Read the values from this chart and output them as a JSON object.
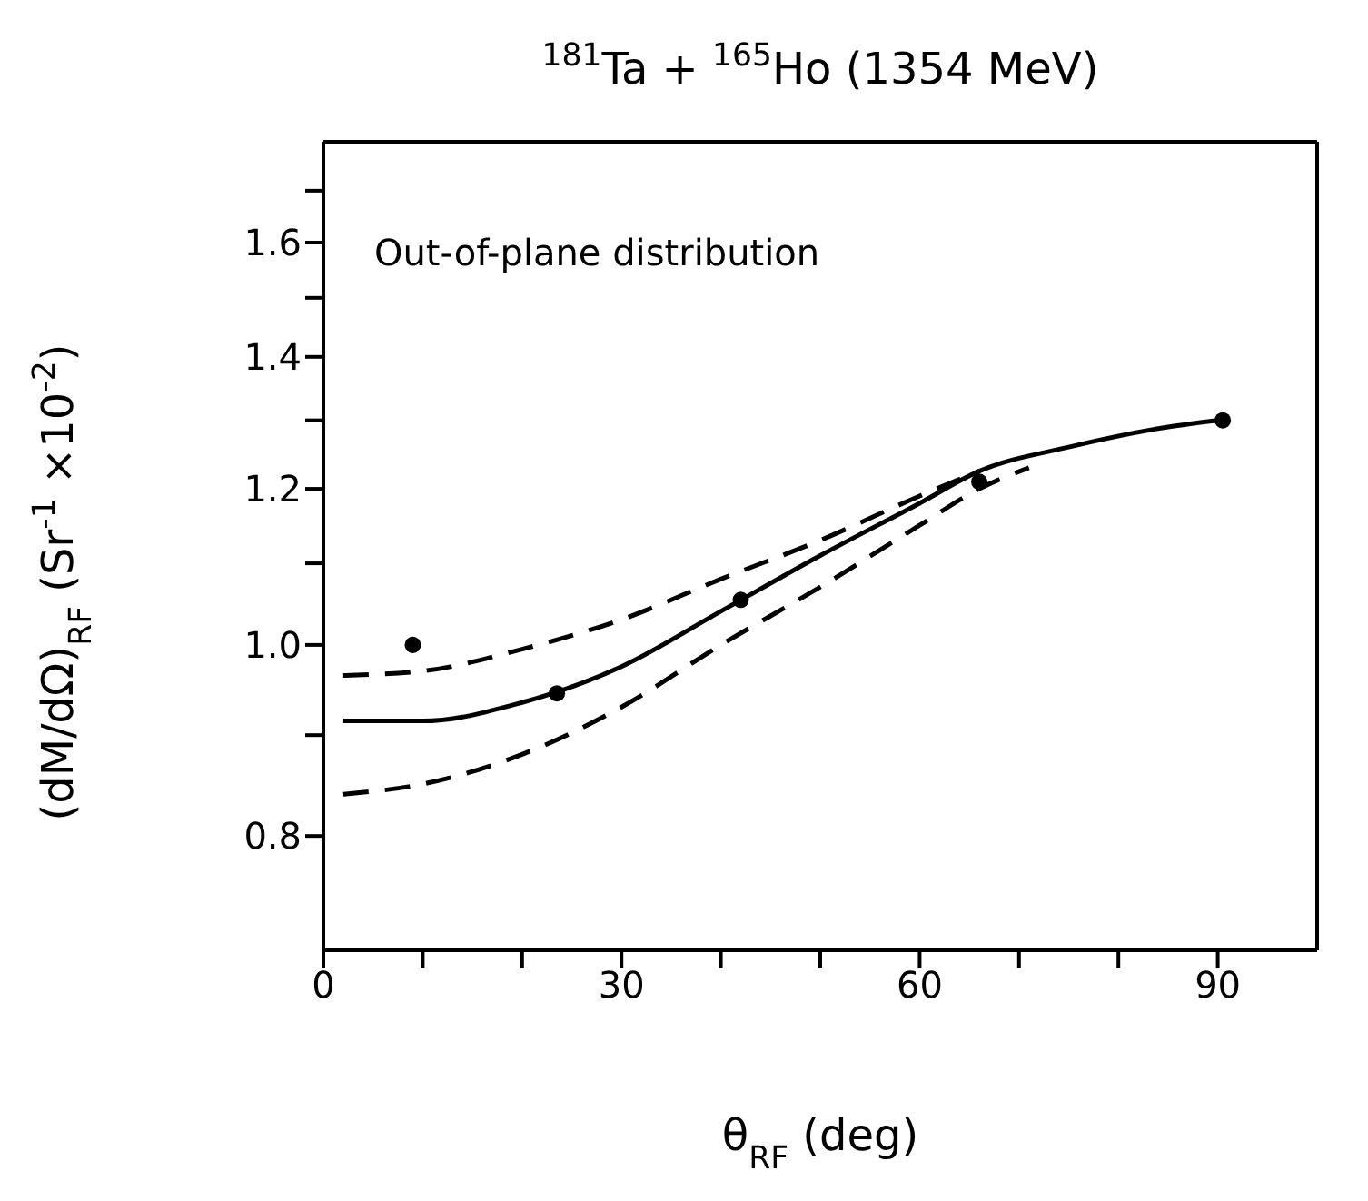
{
  "chart_data": {
    "type": "line",
    "title": "$^{181}$Ta +  $^{165}$Ho (1354 MeV)",
    "xlabel": "θ$_{RF}$ (deg)",
    "ylabel": "(dM/dΩ)$_{RF}$ (Sr$^{-1}$ ×10$^{-2}$)",
    "annotations": [
      "Out-of-plane distribution"
    ],
    "xlim": [
      0,
      100
    ],
    "xticks": [
      0,
      {
        "value": 10,
        "label": null
      },
      {
        "value": 20,
        "label": null
      },
      30,
      {
        "value": 40,
        "label": null
      },
      {
        "value": 50,
        "label": null
      },
      60,
      {
        "value": 70,
        "label": null
      },
      {
        "value": 80,
        "label": null
      },
      90
    ],
    "ylim": [
      0.7,
      1.8
    ],
    "yticks": [
      0.8,
      {
        "value": 0.9,
        "label": null
      },
      {
        "value": 1,
        "label": "1.0"
      },
      {
        "value": 1.1,
        "label": null
      },
      1.2,
      {
        "value": 1.3,
        "label": null
      },
      1.4,
      {
        "value": 1.5,
        "label": null
      },
      1.6,
      {
        "value": 1.7,
        "label": null
      }
    ],
    "log": true,
    "grid": false,
    "legend": false,
    "series": [
      {
        "type": "scatter",
        "color": "#000000",
        "marker": "circle",
        "x": [
          9,
          23.5,
          42,
          66,
          90.5
        ],
        "values": [
          1.0,
          0.945,
          1.054,
          1.21,
          1.3
        ]
      },
      {
        "color": "#000000",
        "line_style": "solid",
        "marker": "none",
        "x": [
          2,
          10,
          20,
          30,
          40,
          50,
          60,
          66,
          75,
          85,
          90
        ],
        "values": [
          0.915,
          0.915,
          0.935,
          0.975,
          1.04,
          1.11,
          1.18,
          1.225,
          1.26,
          1.29,
          1.3
        ]
      },
      {
        "color": "#000000",
        "line_style": "dashed",
        "marker": "none",
        "x": [
          2,
          10,
          20,
          30,
          40,
          50,
          60,
          66
        ],
        "values": [
          0.965,
          0.97,
          0.995,
          1.03,
          1.08,
          1.13,
          1.19,
          1.225
        ]
      },
      {
        "color": "#000000",
        "line_style": "dashed",
        "marker": "none",
        "x": [
          2,
          10,
          20,
          30,
          40,
          50,
          60,
          66,
          71
        ],
        "values": [
          0.84,
          0.85,
          0.88,
          0.93,
          1.0,
          1.07,
          1.15,
          1.2,
          1.23
        ]
      }
    ]
  }
}
